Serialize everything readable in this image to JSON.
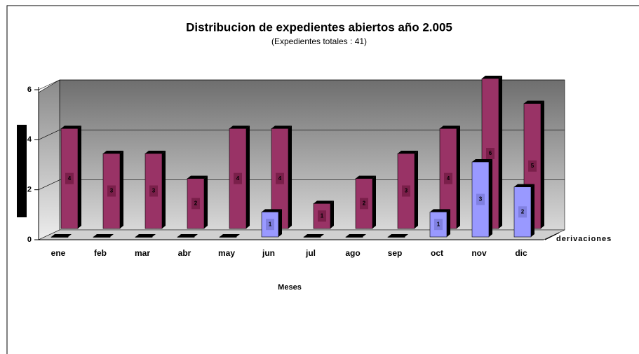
{
  "chart_data": {
    "type": "bar3d",
    "title": "Distribucion de expedientes abiertos año 2.005",
    "subtitle": "(Expedientes totales : 41)",
    "x_label": "Meses",
    "categories": [
      "ene",
      "feb",
      "mar",
      "abr",
      "may",
      "jun",
      "jul",
      "ago",
      "sep",
      "oct",
      "nov",
      "dic"
    ],
    "series": [
      {
        "color": "#993366",
        "values": [
          4,
          3,
          3,
          2,
          4,
          4,
          1,
          2,
          3,
          4,
          6,
          5
        ]
      },
      {
        "name": "derivaciones",
        "color": "#9999ff",
        "values": [
          0,
          0,
          0,
          0,
          0,
          1,
          0,
          0,
          0,
          1,
          3,
          2
        ]
      }
    ],
    "ylim": [
      0,
      6
    ],
    "yticks": [
      0,
      2,
      4,
      6
    ],
    "grid": true
  }
}
